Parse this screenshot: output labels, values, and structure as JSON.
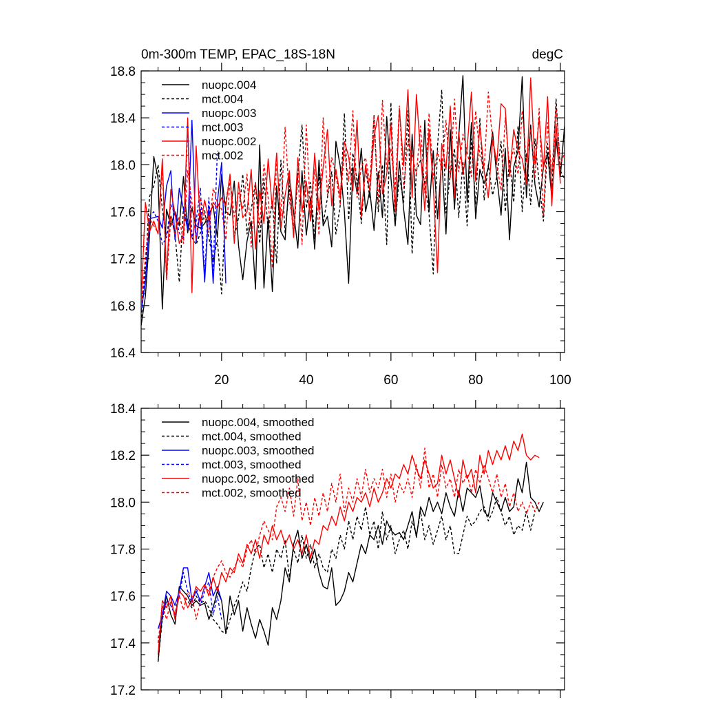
{
  "chart_data": [
    {
      "type": "line",
      "title_left": "0m-300m TEMP, EPAC_18S-18N",
      "title_right": "degC",
      "xlabel": "",
      "ylabel": "",
      "xlim": [
        1,
        101
      ],
      "ylim": [
        16.4,
        18.8
      ],
      "x_ticks": [
        20,
        40,
        60,
        80,
        100
      ],
      "x_tick_labels": [
        "20",
        "40",
        "60",
        "80",
        "100"
      ],
      "y_ticks": [
        16.4,
        16.8,
        17.2,
        17.6,
        18.0,
        18.4,
        18.8
      ],
      "y_tick_labels": [
        "16.4",
        "16.8",
        "17.2",
        "17.6",
        "18.0",
        "18.4",
        "18.8"
      ],
      "legend_position": "top-left",
      "series": [
        {
          "name": "nuopc.004",
          "color": "#000000",
          "dash": false,
          "x_start": 1,
          "values": [
            16.63,
            16.88,
            17.4,
            18.07,
            17.88,
            16.77,
            17.62,
            17.48,
            17.6,
            17.48,
            17.9,
            17.42,
            17.63,
            17.48,
            17.46,
            17.5,
            17.58,
            17.65,
            17.38,
            17.92,
            17.6,
            17.57,
            17.86,
            17.31,
            17.02,
            17.35,
            17.52,
            16.94,
            18.17,
            16.95,
            17.55,
            16.92,
            17.82,
            17.43,
            17.36,
            17.9,
            17.6,
            17.29,
            17.95,
            17.4,
            17.72,
            17.28,
            18.04,
            17.48,
            17.56,
            17.3,
            18.2,
            17.99,
            17.6,
            16.99,
            17.98,
            17.76,
            18.14,
            17.6,
            17.78,
            17.44,
            17.94,
            17.55,
            18.41,
            17.89,
            17.48,
            18.03,
            17.62,
            17.32,
            18.26,
            17.57,
            17.49,
            18.38,
            17.6,
            18.12,
            17.54,
            18.05,
            17.41,
            18.3,
            17.62,
            18.24,
            18.76,
            17.68,
            18.36,
            17.54,
            17.96,
            17.84,
            17.98,
            18.28,
            17.9,
            17.57,
            18.14,
            17.36,
            17.98,
            18.12,
            18.75,
            17.72,
            18.34,
            17.83,
            17.64,
            17.98,
            18.1,
            17.72,
            18.22,
            17.9,
            18.33
          ]
        },
        {
          "name": "mct.004",
          "color": "#000000",
          "dash": true,
          "x_start": 1,
          "values": [
            16.66,
            17.13,
            17.73,
            17.82,
            18.0,
            17.62,
            17.38,
            17.57,
            17.41,
            17.0,
            17.64,
            17.52,
            17.38,
            17.32,
            17.42,
            17.61,
            17.38,
            17.18,
            17.36,
            16.9,
            17.68,
            17.9,
            17.38,
            17.55,
            17.92,
            17.41,
            17.62,
            17.85,
            17.33,
            17.88,
            17.45,
            17.7,
            17.16,
            18.04,
            17.42,
            17.82,
            17.4,
            17.9,
            18.34,
            17.63,
            17.85,
            17.37,
            17.92,
            17.5,
            17.72,
            17.94,
            17.41,
            17.65,
            18.44,
            17.53,
            18.1,
            17.88,
            17.5,
            17.98,
            17.72,
            18.43,
            17.6,
            18.0,
            17.32,
            18.53,
            17.49,
            17.91,
            17.68,
            18.46,
            17.24,
            17.95,
            18.04,
            17.84,
            17.58,
            17.07,
            18.16,
            18.64,
            17.59,
            17.92,
            18.14,
            17.55,
            18.03,
            17.48,
            18.22,
            17.66,
            18.4,
            17.7,
            18.0,
            17.74,
            17.9,
            18.2,
            17.6,
            18.05,
            17.68,
            18.33,
            17.6,
            18.1,
            17.66,
            18.22,
            17.84,
            17.52,
            18.18,
            17.8,
            18.56,
            17.95,
            17.88
          ]
        },
        {
          "name": "nuopc.003",
          "color": "#0000ff",
          "dash": false,
          "x_start": 1,
          "values": [
            16.75,
            17.0,
            17.54,
            17.55,
            17.56,
            17.46,
            17.82,
            17.95,
            17.36,
            17.8,
            17.62,
            17.45,
            18.38,
            17.34,
            17.62,
            17.0,
            17.65,
            16.99,
            17.68,
            18.02,
            16.99
          ]
        },
        {
          "name": "mct.003",
          "color": "#0000ff",
          "dash": true,
          "x_start": 1,
          "values": [
            16.78,
            17.06,
            17.56,
            17.6,
            17.52,
            17.32,
            17.38,
            17.66,
            17.58,
            17.42,
            17.36,
            18.31,
            17.38,
            17.52,
            17.8,
            17.06,
            17.72,
            17.1,
            18.12
          ]
        },
        {
          "name": "nuopc.002",
          "color": "#ff0000",
          "dash": false,
          "x_start": 1,
          "values": [
            16.82,
            17.68,
            17.43,
            17.52,
            17.41,
            18.05,
            17.03,
            17.79,
            17.58,
            17.33,
            17.4,
            18.4,
            16.91,
            18.16,
            17.48,
            17.7,
            17.52,
            17.68,
            17.63,
            17.72,
            17.65,
            17.92,
            17.33,
            17.85,
            17.55,
            17.6,
            17.96,
            17.28,
            17.78,
            17.5,
            18.05,
            17.62,
            18.1,
            17.46,
            17.74,
            17.95,
            17.38,
            18.06,
            17.6,
            17.86,
            17.52,
            18.1,
            17.6,
            17.98,
            18.3,
            17.65,
            17.96,
            17.73,
            18.2,
            18.07,
            17.78,
            18.38,
            17.56,
            18.0,
            17.78,
            18.25,
            18.42,
            17.75,
            17.92,
            18.36,
            17.6,
            18.48,
            17.99,
            18.64,
            17.72,
            18.6,
            18.1,
            17.61,
            18.3,
            17.82,
            17.08,
            18.18,
            17.96,
            18.5,
            17.72,
            18.28,
            17.92,
            18.14,
            18.62,
            17.86,
            18.33,
            17.95,
            17.72,
            18.22,
            18.02,
            18.52,
            18.48,
            17.9,
            18.3,
            18.12,
            18.05,
            17.84,
            18.74,
            18.0,
            18.4,
            17.96,
            18.58,
            17.65,
            18.35,
            17.84
          ]
        },
        {
          "name": "mct.002",
          "color": "#ff0000",
          "dash": true,
          "x_start": 1,
          "values": [
            16.78,
            17.22,
            17.54,
            17.48,
            17.42,
            17.98,
            17.02,
            17.55,
            17.4,
            17.56,
            17.33,
            17.95,
            17.68,
            17.36,
            17.72,
            17.55,
            17.42,
            17.8,
            17.68,
            17.62,
            17.36,
            17.88,
            17.56,
            17.76,
            17.62,
            17.92,
            17.3,
            17.85,
            17.48,
            18.0,
            17.72,
            17.12,
            18.06,
            17.56,
            18.32,
            17.7,
            17.48,
            17.92,
            17.32,
            18.34,
            17.58,
            17.96,
            17.4,
            18.4,
            17.74,
            18.06,
            17.92,
            17.66,
            18.12,
            17.86,
            18.46,
            17.72,
            17.98,
            18.06,
            17.85,
            18.42,
            17.68,
            18.55,
            17.96,
            18.14,
            17.78,
            18.5,
            17.8,
            18.2,
            18.08,
            17.92,
            18.33,
            17.76,
            18.44,
            17.88,
            18.12,
            17.96,
            18.38,
            17.88,
            18.56,
            17.94,
            18.26,
            18.12,
            17.9,
            18.46,
            18.08,
            17.96,
            18.62,
            18.2,
            18.0,
            17.78,
            18.4,
            17.98,
            18.14,
            17.92,
            18.46,
            18.02,
            18.3,
            17.88,
            18.48,
            17.56,
            18.36,
            17.92,
            18.5,
            18.0,
            18.1
          ]
        }
      ]
    },
    {
      "type": "line",
      "xlim": [
        1,
        101
      ],
      "ylim": [
        17.2,
        18.4
      ],
      "x_ticks": [
        20,
        40,
        60,
        80,
        100
      ],
      "y_ticks": [
        17.2,
        17.4,
        17.6,
        17.8,
        18.0,
        18.2,
        18.4
      ],
      "y_tick_labels": [
        "17.2",
        "17.4",
        "17.6",
        "17.8",
        "18.0",
        "18.2",
        "18.4"
      ],
      "legend_position": "top-left",
      "series": [
        {
          "name": "nuopc.004, smoothed",
          "color": "#000000",
          "dash": false,
          "x_start": 5,
          "values": [
            17.32,
            17.52,
            17.6,
            17.52,
            17.48,
            17.64,
            17.62,
            17.6,
            17.56,
            17.58,
            17.56,
            17.57,
            17.5,
            17.55,
            17.62,
            17.58,
            17.44,
            17.6,
            17.52,
            17.58,
            17.45,
            17.55,
            17.48,
            17.42,
            17.5,
            17.45,
            17.39,
            17.55,
            17.5,
            17.58,
            17.72,
            17.66,
            17.82,
            17.88,
            17.76,
            17.82,
            17.74,
            17.8,
            17.7,
            17.64,
            17.63,
            17.72,
            17.56,
            17.58,
            17.62,
            17.7,
            17.66,
            17.74,
            17.82,
            17.78,
            17.86,
            17.84,
            17.9,
            17.82,
            17.92,
            17.88,
            17.86,
            17.87,
            17.84,
            17.9,
            17.96,
            17.85,
            17.98,
            17.94,
            18.02,
            17.96,
            18.0,
            17.95,
            18.04,
            17.98,
            17.94,
            18.05,
            17.96,
            18.06,
            18.04,
            18.02,
            18.07,
            17.96,
            17.94,
            18.04,
            18.0,
            17.96,
            18.02,
            17.96,
            17.98,
            18.1,
            18.04,
            18.17,
            18.02,
            18.0,
            17.96,
            18.0
          ]
        },
        {
          "name": "mct.004, smoothed",
          "color": "#000000",
          "dash": true,
          "x_start": 5,
          "values": [
            17.32,
            17.5,
            17.58,
            17.56,
            17.52,
            17.62,
            17.6,
            17.58,
            17.55,
            17.6,
            17.57,
            17.58,
            17.55,
            17.5,
            17.48,
            17.45,
            17.44,
            17.5,
            17.56,
            17.6,
            17.66,
            17.62,
            17.72,
            17.8,
            17.82,
            17.72,
            17.78,
            17.7,
            17.8,
            17.76,
            17.84,
            17.68,
            17.8,
            17.74,
            17.86,
            17.76,
            17.82,
            17.72,
            17.78,
            17.72,
            17.7,
            17.8,
            17.76,
            17.86,
            17.8,
            17.92,
            17.84,
            17.94,
            17.88,
            17.98,
            17.86,
            17.92,
            17.8,
            17.96,
            17.84,
            17.9,
            17.78,
            17.84,
            17.88,
            17.8,
            17.92,
            17.86,
            17.96,
            17.84,
            17.9,
            17.82,
            17.88,
            17.94,
            17.84,
            17.9,
            17.78,
            17.78,
            17.86,
            17.94,
            17.9,
            17.92,
            17.96,
            17.98,
            17.92,
            17.96,
            18.02,
            17.96,
            17.9,
            17.94,
            17.86,
            17.9,
            17.88,
            17.96,
            17.88,
            17.96
          ]
        },
        {
          "name": "nuopc.003, smoothed",
          "color": "#0000ff",
          "dash": false,
          "x_start": 5,
          "values": [
            17.46,
            17.52,
            17.62,
            17.6,
            17.56,
            17.62,
            17.72,
            17.72,
            17.58,
            17.62,
            17.58,
            17.64,
            17.7,
            17.6,
            17.64,
            17.58
          ]
        },
        {
          "name": "mct.003, smoothed",
          "color": "#0000ff",
          "dash": true,
          "x_start": 5,
          "values": [
            17.42,
            17.5,
            17.58,
            17.56,
            17.52,
            17.6,
            17.7,
            17.62,
            17.57,
            17.64,
            17.56,
            17.62,
            17.66,
            17.52,
            17.6,
            17.5
          ]
        },
        {
          "name": "nuopc.002, smoothed",
          "color": "#ff0000",
          "dash": false,
          "x_start": 5,
          "values": [
            17.35,
            17.58,
            17.55,
            17.6,
            17.5,
            17.62,
            17.6,
            17.55,
            17.58,
            17.64,
            17.62,
            17.65,
            17.6,
            17.68,
            17.62,
            17.7,
            17.66,
            17.72,
            17.7,
            17.78,
            17.74,
            17.82,
            17.78,
            17.84,
            17.76,
            17.86,
            17.82,
            17.9,
            17.84,
            17.88,
            17.82,
            17.86,
            17.8,
            17.84,
            17.78,
            17.86,
            17.76,
            17.84,
            17.82,
            17.9,
            17.88,
            17.94,
            17.9,
            17.98,
            17.92,
            18.0,
            17.96,
            18.02,
            18.0,
            18.04,
            17.98,
            18.06,
            18.0,
            18.04,
            18.1,
            18.06,
            18.12,
            18.1,
            18.16,
            18.12,
            18.2,
            18.14,
            18.1,
            18.18,
            18.12,
            18.06,
            18.08,
            18.2,
            18.12,
            18.18,
            18.1,
            18.02,
            18.18,
            18.1,
            18.14,
            18.04,
            18.2,
            18.12,
            18.22,
            18.16,
            18.22,
            18.18,
            18.24,
            18.18,
            18.26,
            18.22,
            18.29,
            18.2,
            18.18,
            18.2,
            18.19
          ]
        },
        {
          "name": "mct.002, smoothed",
          "color": "#ff0000",
          "dash": true,
          "x_start": 5,
          "values": [
            17.4,
            17.56,
            17.5,
            17.58,
            17.52,
            17.6,
            17.54,
            17.62,
            17.6,
            17.5,
            17.58,
            17.64,
            17.62,
            17.68,
            17.72,
            17.75,
            17.7,
            17.68,
            17.72,
            17.76,
            17.72,
            17.8,
            17.84,
            17.78,
            17.86,
            17.92,
            17.88,
            17.84,
            17.98,
            18.02,
            17.96,
            18.06,
            17.94,
            18.1,
            17.92,
            18.0,
            17.9,
            18.02,
            17.94,
            18.04,
            17.96,
            18.08,
            18.0,
            18.12,
            17.96,
            18.06,
            18.0,
            18.1,
            18.02,
            18.14,
            18.04,
            18.1,
            18.06,
            18.14,
            18.02,
            18.12,
            18.0,
            18.08,
            18.04,
            18.1,
            18.02,
            18.16,
            18.06,
            18.23,
            18.06,
            18.12,
            18.02,
            18.16,
            18.06,
            18.1,
            18.02,
            18.14,
            18.08,
            18.12,
            18.04,
            18.14,
            18.08,
            18.16,
            18.1,
            18.04,
            18.12,
            18.02,
            18.08,
            17.98,
            18.04,
            17.96,
            18.0,
            17.95,
            18.0,
            17.96,
            18.0
          ]
        }
      ]
    }
  ]
}
